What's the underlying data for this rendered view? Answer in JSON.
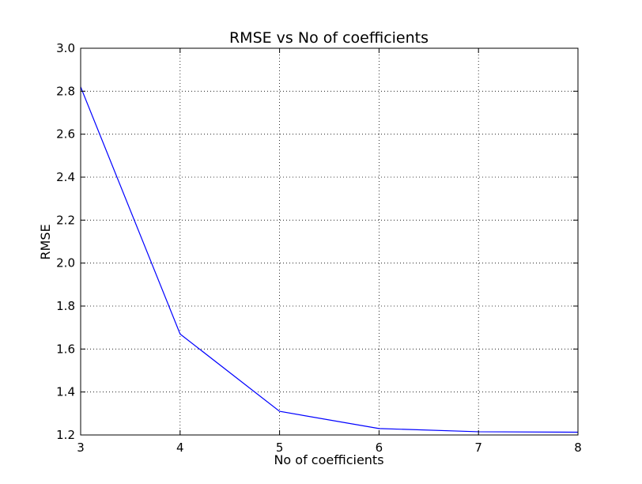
{
  "chart_data": {
    "type": "line",
    "title": "RMSE vs No of coefficients",
    "xlabel": "No of coefficients",
    "ylabel": "RMSE",
    "xlim": [
      3,
      8
    ],
    "ylim": [
      1.2,
      3.0
    ],
    "xticks": [
      "3",
      "4",
      "5",
      "6",
      "7",
      "8"
    ],
    "yticks": [
      "1.2",
      "1.4",
      "1.6",
      "1.8",
      "2.0",
      "2.2",
      "2.4",
      "2.6",
      "2.8",
      "3.0"
    ],
    "grid": true,
    "series": [
      {
        "color": "#0000ff",
        "x": [
          3,
          4,
          5,
          6,
          7,
          8
        ],
        "y": [
          2.82,
          1.67,
          1.31,
          1.23,
          1.215,
          1.213
        ]
      }
    ]
  }
}
